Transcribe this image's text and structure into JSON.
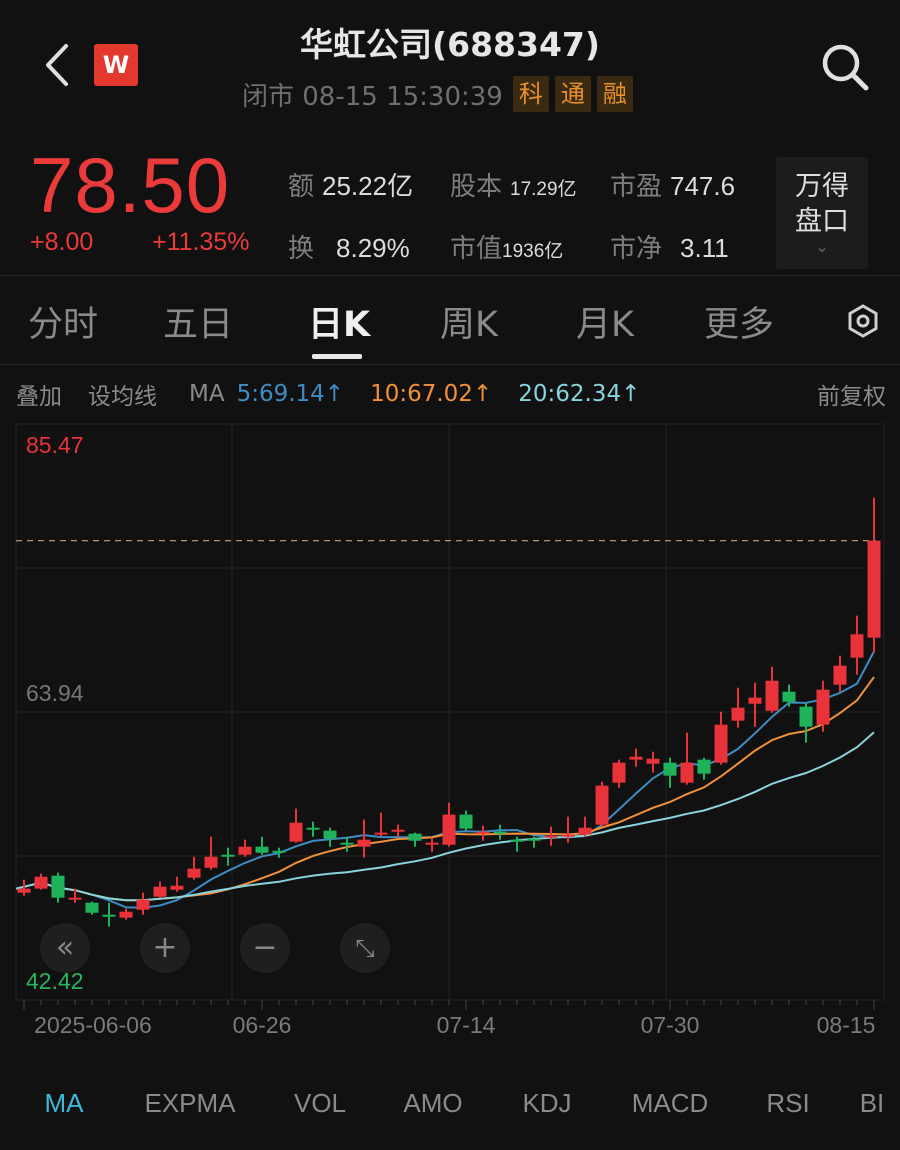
{
  "header": {
    "title": "华虹公司(688347)",
    "logo_text": "W",
    "status": "闭市 08-15 15:30:39",
    "badges": [
      "科",
      "通",
      "融"
    ]
  },
  "quote": {
    "price": "78.50",
    "change": "+8.00",
    "change_pct": "+11.35%",
    "stats": [
      {
        "label": "额",
        "value": "25.22亿"
      },
      {
        "label": "股本",
        "value": "17.29亿"
      },
      {
        "label": "市盈",
        "value": "747.6"
      },
      {
        "label": "换",
        "value": "8.29%"
      },
      {
        "label": "市值",
        "value": "1936亿"
      },
      {
        "label": "市净",
        "value": "3.11"
      }
    ],
    "wind_button": {
      "line1": "万得",
      "line2": "盘口"
    }
  },
  "tabs": [
    {
      "label": "分时"
    },
    {
      "label": "五日"
    },
    {
      "label": "日K",
      "active": true
    },
    {
      "label": "周K"
    },
    {
      "label": "月K"
    },
    {
      "label": "更多"
    }
  ],
  "ma_bar": {
    "overlay": "叠加",
    "set_ma": "设均线",
    "ma": "MA",
    "ma5": "5:69.14↑",
    "ma10": "10:67.02↑",
    "ma20": "20:62.34↑",
    "adjust": "前复权"
  },
  "colors": {
    "up": "#e8333a",
    "down": "#1fb25a",
    "ma5": "#3d8cc4",
    "ma10": "#f0913a",
    "ma20": "#8ad3da",
    "last_price_line": "#c9a070"
  },
  "chart_data": {
    "type": "candlestick",
    "y_labels": {
      "max": "85.47",
      "mid": "63.94",
      "min": "42.42"
    },
    "last_close": 78.5,
    "x_ticks": [
      {
        "label": "2025-06-06",
        "index": 0
      },
      {
        "label": "06-26",
        "index": 14
      },
      {
        "label": "07-14",
        "index": 26
      },
      {
        "label": "07-30",
        "index": 38
      },
      {
        "label": "08-15",
        "index": 50
      }
    ],
    "ohlc_columns": [
      "open",
      "high",
      "low",
      "close"
    ],
    "candles": [
      [
        48.4,
        49.52,
        48.15,
        48.75
      ],
      [
        48.75,
        50.03,
        48.66,
        49.77
      ],
      [
        49.86,
        50.11,
        47.55,
        47.98
      ],
      [
        47.81,
        48.75,
        47.55,
        47.98
      ],
      [
        47.55,
        47.64,
        46.52,
        46.69
      ],
      [
        46.52,
        47.55,
        45.5,
        46.35
      ],
      [
        46.27,
        47.04,
        46.1,
        46.78
      ],
      [
        46.95,
        48.4,
        46.52,
        47.81
      ],
      [
        48.06,
        49.35,
        47.98,
        48.92
      ],
      [
        48.66,
        49.77,
        48.49,
        49.0
      ],
      [
        49.69,
        51.48,
        49.52,
        50.46
      ],
      [
        50.54,
        53.19,
        50.37,
        51.48
      ],
      [
        51.65,
        52.25,
        50.71,
        51.48
      ],
      [
        51.65,
        52.94,
        51.48,
        52.34
      ],
      [
        52.34,
        53.19,
        51.65,
        51.82
      ],
      [
        51.99,
        52.25,
        51.4,
        51.82
      ],
      [
        52.77,
        55.59,
        52.68,
        54.39
      ],
      [
        53.96,
        54.48,
        53.19,
        53.79
      ],
      [
        53.71,
        53.96,
        52.34,
        53.03
      ],
      [
        52.68,
        53.19,
        51.91,
        52.51
      ],
      [
        52.34,
        54.65,
        51.4,
        52.94
      ],
      [
        53.37,
        55.24,
        53.19,
        53.54
      ],
      [
        53.62,
        54.22,
        53.19,
        53.79
      ],
      [
        53.45,
        53.54,
        52.34,
        52.85
      ],
      [
        52.51,
        53.11,
        51.91,
        52.68
      ],
      [
        52.51,
        56.1,
        52.34,
        55.08
      ],
      [
        55.08,
        55.42,
        53.71,
        53.88
      ],
      [
        53.45,
        54.13,
        52.85,
        53.62
      ],
      [
        53.62,
        54.22,
        52.94,
        53.45
      ],
      [
        52.94,
        53.19,
        51.91,
        52.77
      ],
      [
        53.03,
        53.19,
        52.25,
        52.85
      ],
      [
        53.11,
        54.05,
        52.42,
        53.28
      ],
      [
        53.19,
        54.9,
        52.68,
        53.37
      ],
      [
        53.37,
        54.9,
        53.19,
        53.96
      ],
      [
        54.22,
        57.89,
        54.05,
        57.56
      ],
      [
        57.81,
        59.78,
        57.38,
        59.52
      ],
      [
        59.78,
        60.72,
        59.18,
        60.03
      ],
      [
        59.43,
        60.46,
        58.67,
        59.86
      ],
      [
        59.52,
        59.95,
        57.38,
        58.41
      ],
      [
        57.81,
        62.09,
        57.64,
        59.52
      ],
      [
        59.78,
        59.95,
        58.07,
        58.58
      ],
      [
        59.52,
        63.88,
        59.35,
        62.77
      ],
      [
        63.11,
        65.93,
        62.51,
        64.22
      ],
      [
        64.56,
        66.36,
        62.6,
        65.08
      ],
      [
        63.96,
        67.73,
        63.79,
        66.53
      ],
      [
        65.59,
        66.19,
        64.31,
        64.73
      ],
      [
        64.31,
        64.65,
        61.23,
        62.6
      ],
      [
        62.77,
        66.53,
        62.17,
        65.76
      ],
      [
        66.19,
        68.67,
        65.59,
        67.81
      ],
      [
        68.5,
        72.09,
        67.04,
        70.5
      ],
      [
        70.21,
        82.18,
        68.93,
        78.5
      ]
    ],
    "ma_periods": [
      5,
      10,
      20
    ],
    "grid": true
  },
  "controls": [
    {
      "name": "scroll-left-button",
      "icon": "double-chevron-left-icon",
      "glyph": "«"
    },
    {
      "name": "zoom-in-button",
      "icon": "plus-icon",
      "glyph": "+"
    },
    {
      "name": "zoom-out-button",
      "icon": "minus-icon",
      "glyph": "−"
    },
    {
      "name": "fullscreen-button",
      "icon": "expand-icon",
      "glyph": "⤡"
    }
  ],
  "indicators": [
    {
      "label": "MA",
      "active": true
    },
    {
      "label": "EXPMA"
    },
    {
      "label": "VOL"
    },
    {
      "label": "AMO"
    },
    {
      "label": "KDJ"
    },
    {
      "label": "MACD"
    },
    {
      "label": "RSI"
    },
    {
      "label": "BI"
    }
  ]
}
